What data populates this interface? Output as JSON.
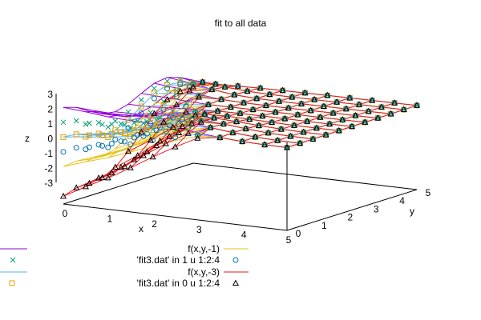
{
  "chart_data": {
    "type": "surface",
    "title": "fit to all data",
    "xlabel": "x",
    "ylabel": "y",
    "zlabel": "z",
    "xlim": [
      0,
      5
    ],
    "ylim": [
      0,
      5
    ],
    "zlim": [
      -3,
      3
    ],
    "x_ticks": [
      "0",
      "1",
      "2",
      "3",
      "4",
      "5"
    ],
    "y_ticks": [
      "0",
      "1",
      "2",
      "3",
      "4",
      "5"
    ],
    "z_ticks": [
      "3",
      "2",
      "1",
      "0",
      "-1",
      "-2",
      "-3"
    ],
    "grid": [
      0,
      0.5,
      1,
      1.5,
      2,
      2.5,
      3,
      3.5,
      4,
      4.5,
      5
    ],
    "surfaces": [
      {
        "name": "",
        "z_offset": 3,
        "color": "#9400d3"
      },
      {
        "name": "",
        "z_offset": 1,
        "color": "#56b4e9"
      },
      {
        "name": "f(x,y,-1)",
        "z_offset": -1,
        "color": "#e6c21a"
      },
      {
        "name": "f(x,y,-3)",
        "z_offset": -3,
        "color": "#e41a1c"
      }
    ],
    "point_sets": [
      {
        "name": "",
        "z_offset": 2,
        "marker": "cross",
        "color": "#009e73"
      },
      {
        "name": "",
        "z_offset": 1,
        "marker": "square",
        "color": "#e69f00"
      },
      {
        "name": "'fit3.dat' in 1 u 1:2:4",
        "z_offset": 0,
        "marker": "circle",
        "color": "#0072b2"
      },
      {
        "name": "'fit3.dat' in 0 u 1:2:4",
        "z_offset": -3,
        "marker": "triangle",
        "color": "#000000"
      }
    ],
    "legend_position": "bottom"
  }
}
